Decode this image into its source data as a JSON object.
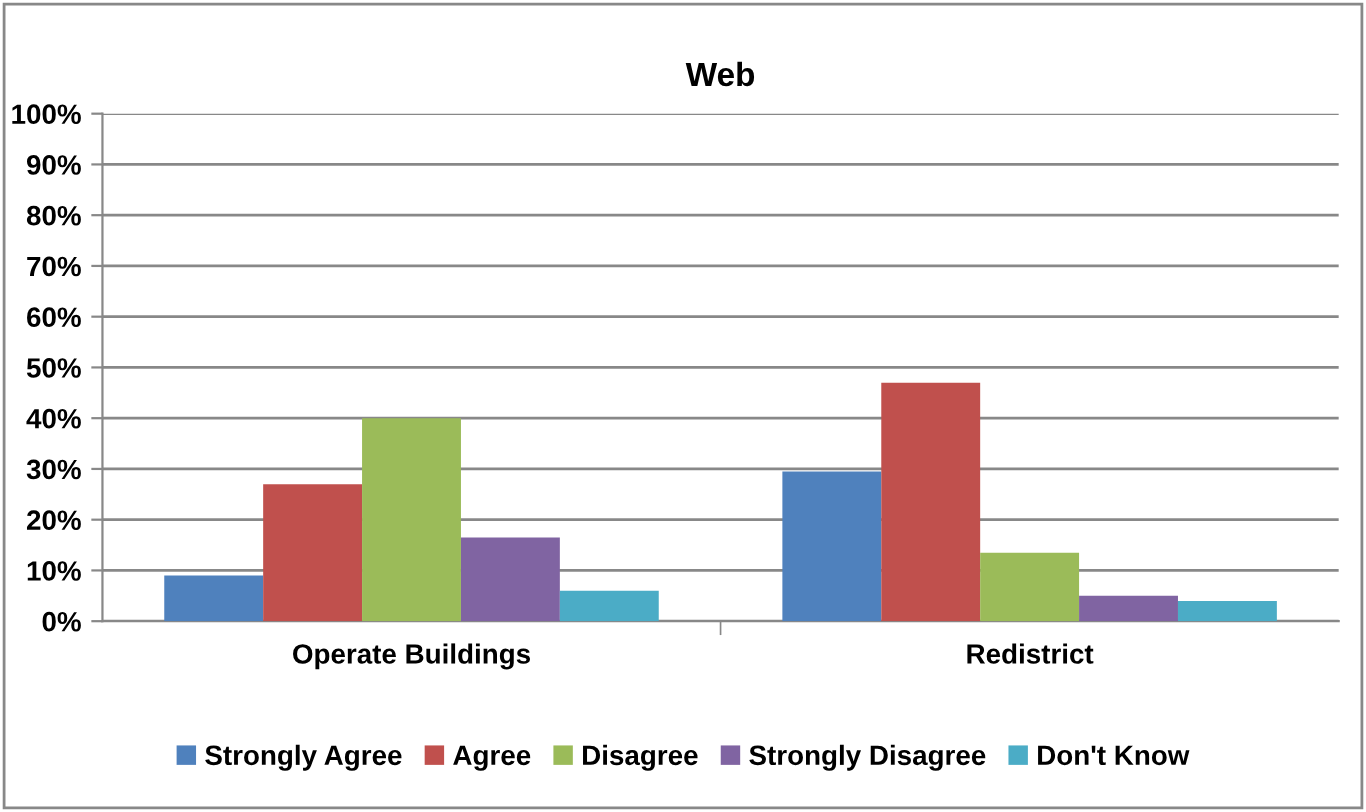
{
  "chart_data": {
    "type": "bar",
    "title": "Web",
    "categories": [
      "Operate Buildings",
      "Redistrict"
    ],
    "series": [
      {
        "name": "Strongly Agree",
        "color": "#4f81bd",
        "values": [
          9,
          29.5
        ]
      },
      {
        "name": "Agree",
        "color": "#c0504d",
        "values": [
          27,
          47
        ]
      },
      {
        "name": "Disagree",
        "color": "#9bbb59",
        "values": [
          40,
          13.5
        ]
      },
      {
        "name": "Strongly Disagree",
        "color": "#8064a2",
        "values": [
          16.5,
          5
        ]
      },
      {
        "name": "Don't Know",
        "color": "#4bacc6",
        "values": [
          6,
          4
        ]
      }
    ],
    "ylim": [
      0,
      100
    ],
    "yticks": [
      {
        "value": 0,
        "label": "0%"
      },
      {
        "value": 10,
        "label": "10%"
      },
      {
        "value": 20,
        "label": "20%"
      },
      {
        "value": 30,
        "label": "30%"
      },
      {
        "value": 40,
        "label": "40%"
      },
      {
        "value": 50,
        "label": "50%"
      },
      {
        "value": 60,
        "label": "60%"
      },
      {
        "value": 70,
        "label": "70%"
      },
      {
        "value": 80,
        "label": "80%"
      },
      {
        "value": 90,
        "label": "90%"
      },
      {
        "value": 100,
        "label": "100%"
      }
    ],
    "grid": "y",
    "legend": "bottom"
  }
}
